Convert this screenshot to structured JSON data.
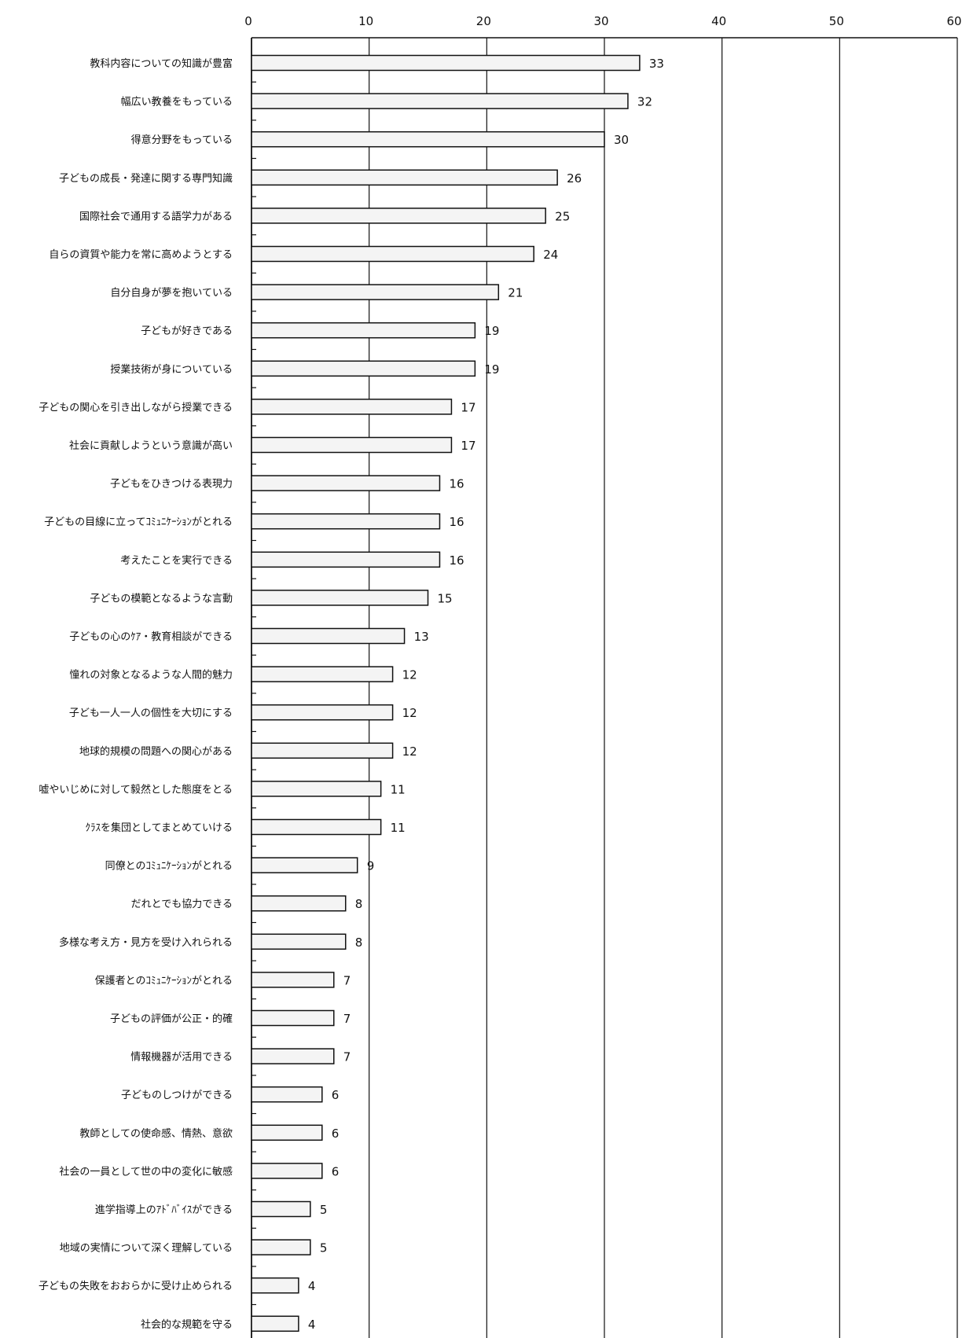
{
  "chart_data": {
    "type": "bar",
    "orientation": "horizontal",
    "xlim": [
      0,
      60
    ],
    "xticks": [
      0,
      10,
      20,
      30,
      40,
      50,
      60
    ],
    "grid": true,
    "legend": "none",
    "title": "",
    "xlabel": "",
    "ylabel": "",
    "categories": [
      "教科内容についての知識が豊富",
      "幅広い教養をもっている",
      "得意分野をもっている",
      "子どもの成長・発達に関する専門知識",
      "国際社会で通用する語学力がある",
      "自らの資質や能力を常に高めようとする",
      "自分自身が夢を抱いている",
      "子どもが好きである",
      "授業技術が身についている",
      "子どもの関心を引き出しながら授業できる",
      "社会に貢献しようという意識が高い",
      "子どもをひきつける表現力",
      "子どもの目線に立ってｺﾐｭﾆｹｰｼｮﾝがとれる",
      "考えたことを実行できる",
      "子どもの模範となるような言動",
      "子どもの心のｹｱ・教育相談ができる",
      "憧れの対象となるような人間的魅力",
      "子ども一人一人の個性を大切にする",
      "地球的規模の問題への関心がある",
      "嘘やいじめに対して毅然とした態度をとる",
      "ｸﾗｽを集団としてまとめていける",
      "同僚とのｺﾐｭﾆｹｰｼｮﾝがとれる",
      "だれとでも協力できる",
      "多様な考え方・見方を受け入れられる",
      "保護者とのｺﾐｭﾆｹｰｼｮﾝがとれる",
      "子どもの評価が公正・的確",
      "情報機器が活用できる",
      "子どものしつけができる",
      "教師としての使命感、情熱、意欲",
      "社会の一員として世の中の変化に敏感",
      "進学指導上のｱﾄﾞﾊﾞｲｽができる",
      "地域の実情について深く理解している",
      "子どもの失敗をおおらかに受け止められる",
      "社会的な規範を守る"
    ],
    "values": [
      33,
      32,
      30,
      26,
      25,
      24,
      21,
      19,
      19,
      17,
      17,
      16,
      16,
      16,
      15,
      13,
      12,
      12,
      12,
      11,
      11,
      9,
      8,
      8,
      7,
      7,
      7,
      6,
      6,
      6,
      5,
      5,
      4,
      4
    ]
  },
  "colors": {
    "bar_fill": "#f4f4f4",
    "bar_stroke": "#111111",
    "grid": "#111111"
  }
}
